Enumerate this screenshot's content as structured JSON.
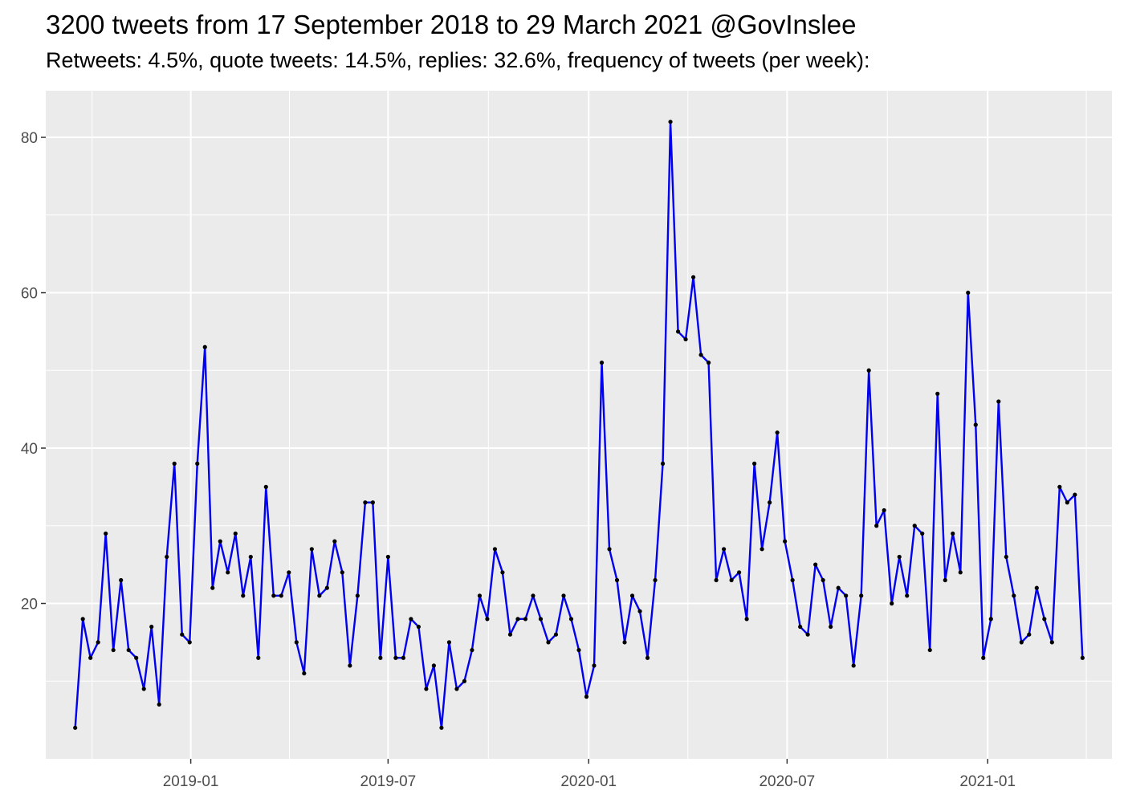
{
  "title": "3200 tweets from 17 September 2018 to 29 March 2021 @GovInslee",
  "subtitle": "Retweets: 4.5%, quote tweets: 14.5%, replies: 32.6%, frequency of tweets (per week):",
  "colors": {
    "panel_background": "#ebebeb",
    "grid": "#ffffff",
    "line": "#0000ee",
    "point": "#000000"
  },
  "chart_data": {
    "type": "line",
    "title": "3200 tweets from 17 September 2018 to 29 March 2021 @GovInslee",
    "subtitle": "Retweets: 4.5%, quote tweets: 14.5%, replies: 32.6%, frequency of tweets (per week):",
    "xlabel": "",
    "ylabel": "",
    "x_scale": "date",
    "x_start": "2018-09-17",
    "x_end": "2021-03-29",
    "x_step_days": 7,
    "xlim": [
      "2018-08-21",
      "2021-04-25"
    ],
    "ylim": [
      0,
      86
    ],
    "x_ticks": [
      "2019-01",
      "2019-07",
      "2020-01",
      "2020-07",
      "2021-01"
    ],
    "x_tick_dates": [
      "2019-01-01",
      "2019-07-01",
      "2020-01-01",
      "2020-07-01",
      "2021-01-01"
    ],
    "y_ticks": [
      20,
      40,
      60,
      80
    ],
    "grid": true,
    "legend": "none",
    "series": [
      {
        "values": [
          4,
          18,
          13,
          15,
          29,
          14,
          23,
          14,
          13,
          9,
          17,
          7,
          26,
          38,
          16,
          15,
          38,
          53,
          22,
          28,
          24,
          29,
          21,
          26,
          13,
          35,
          21,
          21,
          24,
          15,
          11,
          27,
          21,
          22,
          28,
          24,
          12,
          21,
          33,
          33,
          13,
          26,
          13,
          13,
          18,
          17,
          9,
          12,
          4,
          15,
          9,
          10,
          14,
          21,
          18,
          27,
          24,
          16,
          18,
          18,
          21,
          18,
          15,
          16,
          21,
          18,
          14,
          8,
          12,
          51,
          27,
          23,
          15,
          21,
          19,
          13,
          23,
          38,
          82,
          55,
          54,
          62,
          52,
          51,
          23,
          27,
          23,
          24,
          18,
          38,
          27,
          33,
          42,
          28,
          23,
          17,
          16,
          25,
          23,
          17,
          22,
          21,
          12,
          21,
          50,
          30,
          32,
          20,
          26,
          21,
          30,
          29,
          14,
          47,
          23,
          29,
          24,
          60,
          43,
          13,
          18,
          46,
          26,
          21,
          15,
          16,
          22,
          18,
          15,
          35,
          33,
          34,
          13
        ]
      }
    ]
  }
}
